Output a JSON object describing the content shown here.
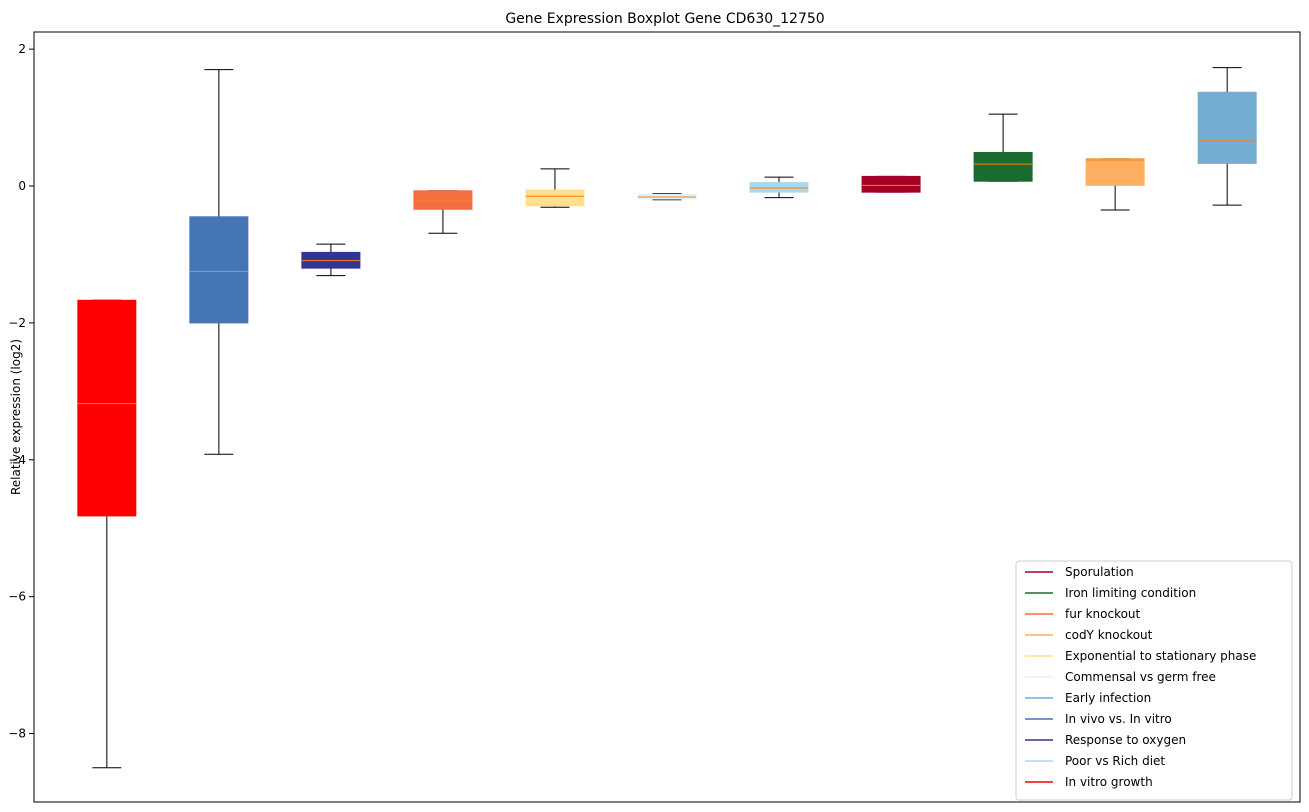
{
  "chart_data": {
    "type": "boxplot",
    "title": "Gene Expression Boxplot Gene CD630_12750",
    "ylabel": "Relative expression (log2)",
    "xlabel": "",
    "ylim": [
      -9.0,
      2.25
    ],
    "yticks": [
      2,
      0,
      -2,
      -4,
      -6,
      -8
    ],
    "ytick_labels": [
      "2",
      "0",
      "−2",
      "−4",
      "−6",
      "−8"
    ],
    "legend_position": "lower-right",
    "median_color": "#ff7f0e",
    "series": [
      {
        "color": "#ff0000",
        "whisker_low": -8.5,
        "q1": -4.82,
        "median": -3.18,
        "q3": -1.67,
        "whisker_high": -1.67
      },
      {
        "color": "#4575b4",
        "whisker_low": -3.92,
        "q1": -2.0,
        "median": -1.25,
        "q3": -0.45,
        "whisker_high": 1.7
      },
      {
        "color": "#313695",
        "whisker_low": -1.31,
        "q1": -1.2,
        "median": -1.09,
        "q3": -0.97,
        "whisker_high": -0.85
      },
      {
        "color": "#f46d43",
        "whisker_low": -0.69,
        "q1": -0.34,
        "median": -0.22,
        "q3": -0.07,
        "whisker_high": -0.07
      },
      {
        "color": "#fee090",
        "whisker_low": -0.31,
        "q1": -0.29,
        "median": -0.15,
        "q3": -0.06,
        "whisker_high": 0.25
      },
      {
        "color": "#e0f3f8",
        "whisker_low": -0.2,
        "q1": -0.19,
        "median": -0.16,
        "q3": -0.12,
        "whisker_high": -0.11
      },
      {
        "color": "#abd9e9",
        "whisker_low": -0.17,
        "q1": -0.09,
        "median": -0.03,
        "q3": 0.05,
        "whisker_high": 0.13
      },
      {
        "color": "#a50026",
        "whisker_low": -0.09,
        "q1": -0.09,
        "median": 0.01,
        "q3": 0.14,
        "whisker_high": 0.14
      },
      {
        "color": "#1a6b2e",
        "whisker_low": 0.07,
        "q1": 0.07,
        "median": 0.32,
        "q3": 0.49,
        "whisker_high": 1.05
      },
      {
        "color": "#fdae61",
        "whisker_low": -0.35,
        "q1": 0.01,
        "median": 0.38,
        "q3": 0.4,
        "whisker_high": 0.4
      },
      {
        "color": "#74add1",
        "whisker_low": -0.28,
        "q1": 0.33,
        "median": 0.66,
        "q3": 1.37,
        "whisker_high": 1.73
      }
    ],
    "legend": [
      {
        "label": "Sporulation",
        "color": "#a50026"
      },
      {
        "label": "Iron limiting condition",
        "color": "#1a6b2e"
      },
      {
        "label": "fur knockout",
        "color": "#f46d43"
      },
      {
        "label": "codY knockout",
        "color": "#fdae61"
      },
      {
        "label": "Exponential to stationary phase",
        "color": "#fee090"
      },
      {
        "label": "Commensal vs germ free",
        "color": "#e0f3f8"
      },
      {
        "label": "Early infection",
        "color": "#74add1"
      },
      {
        "label": "In vivo vs. In vitro",
        "color": "#4575b4"
      },
      {
        "label": "Response to oxygen",
        "color": "#313695"
      },
      {
        "label": "Poor vs Rich diet",
        "color": "#abd9e9"
      },
      {
        "label": "In vitro growth",
        "color": "#ff0000"
      }
    ]
  }
}
